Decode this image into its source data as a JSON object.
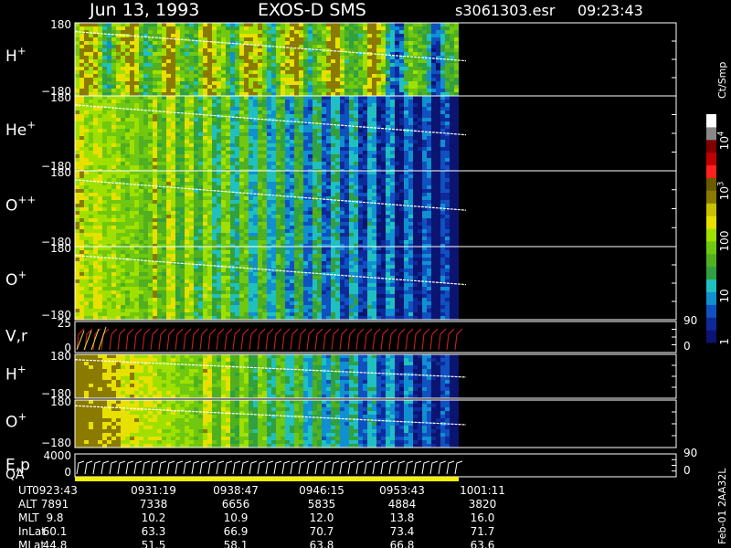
{
  "header": {
    "date": "Jun 13, 1993",
    "instrument": "EXOS-D SMS",
    "file": "s3061303.esr",
    "time": "09:23:43"
  },
  "panels": [
    {
      "label": {
        "base": "H",
        "sup": "+"
      },
      "top": "180",
      "bottom": "−180"
    },
    {
      "label": {
        "base": "He",
        "sup": "+"
      },
      "top": "180",
      "bottom": "−180"
    },
    {
      "label": {
        "base": "O",
        "sup": "++"
      },
      "top": "180",
      "bottom": "−180"
    },
    {
      "label": {
        "base": "O",
        "sup": "+"
      },
      "top": "180",
      "bottom": "−180"
    },
    {
      "label": {
        "base": "V,r",
        "sup": ""
      },
      "top": "25",
      "bottom": "0",
      "right_top": "90",
      "right_bottom": "0"
    },
    {
      "label": {
        "base": "H",
        "sup": "+"
      },
      "top": "180",
      "bottom": "−180"
    },
    {
      "label": {
        "base": "O",
        "sup": "+"
      },
      "top": "180",
      "bottom": "−180"
    },
    {
      "label": {
        "base": "E,p",
        "sup": ""
      },
      "label2": "QA",
      "top": "4000",
      "bottom": "0",
      "right_top": "90",
      "right_bottom": "0"
    }
  ],
  "colorbar": {
    "unit": "Ct/Smp",
    "labels": [
      {
        "base": "10",
        "sup": "4"
      },
      {
        "base": "10",
        "sup": "3"
      },
      {
        "base": "100",
        "sup": ""
      },
      {
        "base": "10",
        "sup": ""
      },
      {
        "base": "1",
        "sup": ""
      }
    ]
  },
  "footer": [
    {
      "label": "UT",
      "values": [
        "0923:43",
        "0931:19",
        "0938:47",
        "0946:15",
        "0953:43",
        "1001:11"
      ]
    },
    {
      "label": "ALT",
      "values": [
        "7891",
        "7338",
        "6656",
        "5835",
        "4884",
        "3820"
      ]
    },
    {
      "label": "MLT",
      "values": [
        "9.8",
        "10.2",
        "10.9",
        "12.0",
        "13.8",
        "16.0"
      ]
    },
    {
      "label": "InLat",
      "values": [
        "60.1",
        "63.3",
        "66.9",
        "70.7",
        "73.4",
        "71.7"
      ]
    },
    {
      "label": "MLat",
      "values": [
        "44.8",
        "51.5",
        "58.1",
        "63.8",
        "66.8",
        "63.6"
      ]
    }
  ],
  "side_note": "Feb-01 2AA32L"
}
